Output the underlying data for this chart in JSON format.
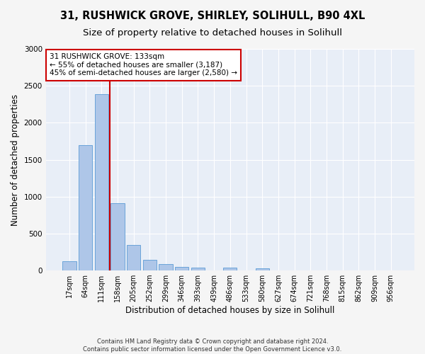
{
  "title1": "31, RUSHWICK GROVE, SHIRLEY, SOLIHULL, B90 4XL",
  "title2": "Size of property relative to detached houses in Solihull",
  "xlabel": "Distribution of detached houses by size in Solihull",
  "ylabel": "Number of detached properties",
  "footnote1": "Contains HM Land Registry data © Crown copyright and database right 2024.",
  "footnote2": "Contains public sector information licensed under the Open Government Licence v3.0.",
  "categories": [
    "17sqm",
    "64sqm",
    "111sqm",
    "158sqm",
    "205sqm",
    "252sqm",
    "299sqm",
    "346sqm",
    "393sqm",
    "439sqm",
    "486sqm",
    "533sqm",
    "580sqm",
    "627sqm",
    "674sqm",
    "721sqm",
    "768sqm",
    "815sqm",
    "862sqm",
    "909sqm",
    "956sqm"
  ],
  "values": [
    130,
    1700,
    2390,
    910,
    350,
    145,
    85,
    50,
    35,
    0,
    35,
    0,
    30,
    0,
    0,
    0,
    0,
    0,
    0,
    0,
    0
  ],
  "bar_color": "#aec6e8",
  "bar_edge_color": "#5b9bd5",
  "annotation_text_line1": "31 RUSHWICK GROVE: 133sqm",
  "annotation_text_line2": "← 55% of detached houses are smaller (3,187)",
  "annotation_text_line3": "45% of semi-detached houses are larger (2,580) →",
  "annotation_box_color": "#ffffff",
  "annotation_box_edge": "#cc0000",
  "vline_color": "#cc0000",
  "vline_x": 2.5,
  "ylim": [
    0,
    3000
  ],
  "yticks": [
    0,
    500,
    1000,
    1500,
    2000,
    2500,
    3000
  ],
  "plot_bg_color": "#e8eef7",
  "fig_bg_color": "#f5f5f5",
  "grid_color": "#ffffff",
  "title1_fontsize": 10.5,
  "title2_fontsize": 9.5,
  "tick_fontsize": 7,
  "ylabel_fontsize": 8.5,
  "xlabel_fontsize": 8.5,
  "annotation_fontsize": 7.5,
  "footnote_fontsize": 6
}
